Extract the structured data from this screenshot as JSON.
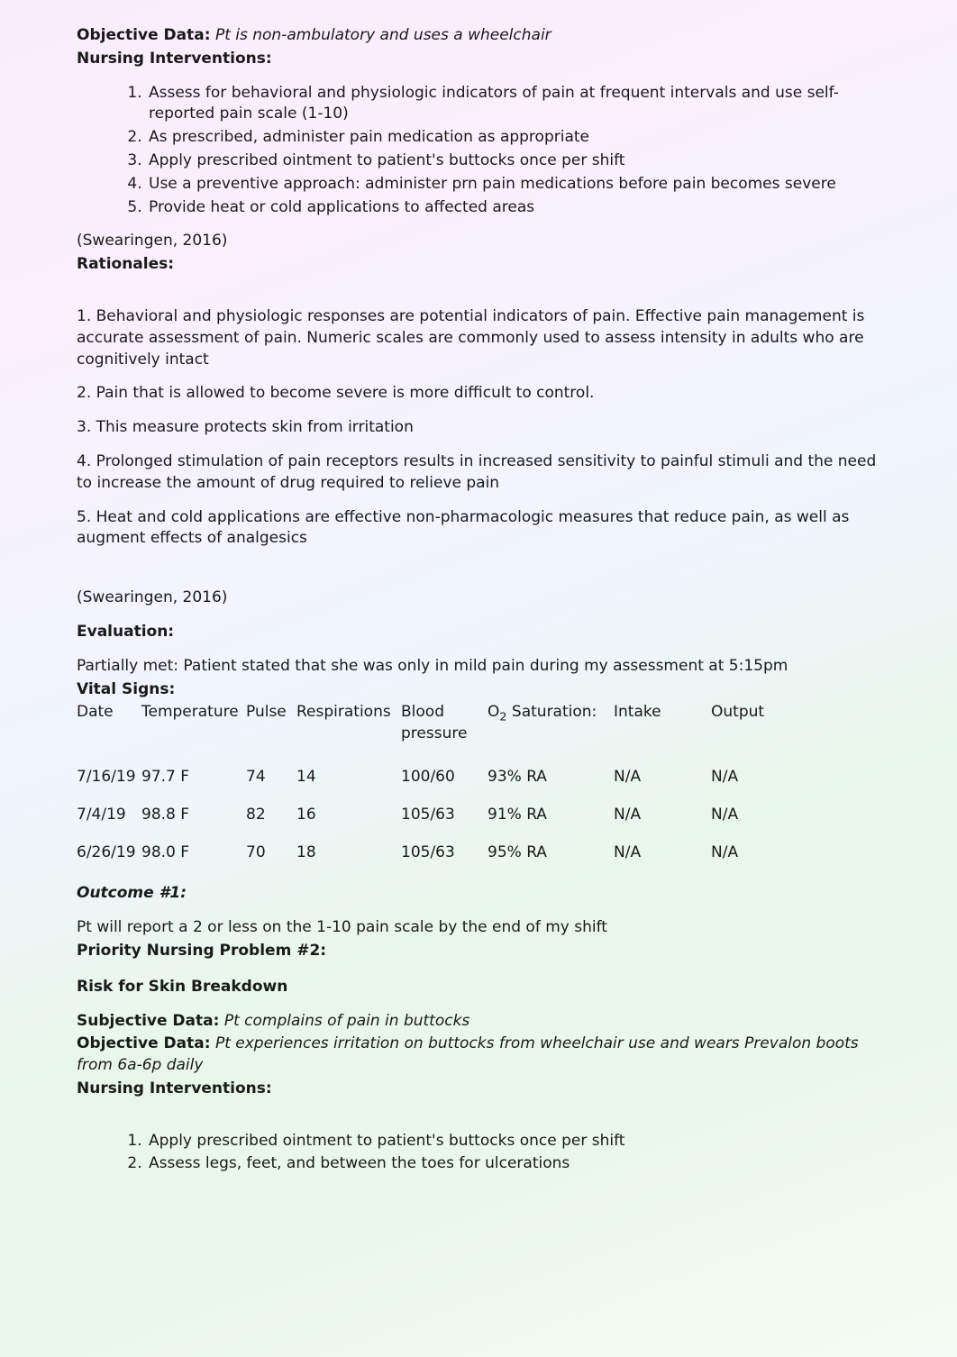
{
  "objective_data_1": {
    "label": "Objective Data:",
    "text": "Pt is non-ambulatory and uses a wheelchair"
  },
  "nursing_interventions_1": {
    "label": "Nursing Interventions:",
    "items": [
      "Assess for behavioral and physiologic indicators of pain at frequent intervals and use self-reported pain scale (1-10)",
      "As prescribed, administer pain medication as appropriate",
      "Apply prescribed ointment to patient's buttocks once per shift",
      "Use a preventive approach: administer prn pain medications before pain becomes severe",
      "Provide heat or cold applications to affected areas"
    ]
  },
  "citation_1": "(Swearingen, 2016)",
  "rationales": {
    "label": "Rationales:",
    "items": [
      "1. Behavioral and physiologic responses are potential indicators of pain. Effective pain management is accurate assessment of pain. Numeric scales are commonly used to assess intensity in adults who are cognitively intact",
      "2. Pain that is allowed to become severe is more difficult to control.",
      "3. This measure protects skin from irritation",
      "4. Prolonged stimulation of pain receptors results in increased sensitivity to painful stimuli and the need to increase the amount of drug required to relieve pain",
      "5. Heat and cold applications are effective non-pharmacologic measures that reduce pain, as well as augment effects of analgesics"
    ]
  },
  "citation_2": "(Swearingen, 2016)",
  "evaluation": {
    "label": "Evaluation:",
    "text": "Partially met: Patient stated that she was only in mild pain during my assessment at 5:15pm"
  },
  "vital_signs": {
    "label": "Vital Signs:",
    "headers": {
      "date": "Date",
      "temp": "Temperature",
      "pulse": "Pulse",
      "resp": "Respirations",
      "bp": "Blood pressure",
      "o2_pre": "O",
      "o2_sub": "2",
      "o2_post": " Saturation:",
      "intake": "Intake",
      "output": "Output"
    },
    "rows": [
      {
        "date": "7/16/19",
        "temp": "97.7 F",
        "pulse": "74",
        "resp": "14",
        "bp": "100/60",
        "o2": "93% RA",
        "intake": "N/A",
        "output": "N/A"
      },
      {
        "date": "7/4/19",
        "temp": "98.8 F",
        "pulse": "82",
        "resp": "16",
        "bp": "105/63",
        "o2": "91% RA",
        "intake": "N/A",
        "output": "N/A"
      },
      {
        "date": "6/26/19",
        "temp": "98.0 F",
        "pulse": "70",
        "resp": "18",
        "bp": "105/63",
        "o2": "95% RA",
        "intake": "N/A",
        "output": "N/A"
      }
    ]
  },
  "outcome_1": {
    "label": "Outcome #1:",
    "text": "Pt will report a 2 or less on the 1-10 pain scale by the end of my shift"
  },
  "priority_problem_2": {
    "label": "Priority Nursing Problem #2:",
    "title": "Risk for Skin Breakdown"
  },
  "subjective_data_2": {
    "label": "Subjective Data:",
    "text": "Pt complains of pain in buttocks"
  },
  "objective_data_2": {
    "label": "Objective Data:",
    "text": "Pt experiences irritation on buttocks from wheelchair use and wears Prevalon boots from 6a-6p daily"
  },
  "nursing_interventions_2": {
    "label": "Nursing Interventions:",
    "items": [
      "Apply prescribed ointment to patient's buttocks once per shift",
      "Assess legs, feet, and between the toes for ulcerations"
    ]
  }
}
